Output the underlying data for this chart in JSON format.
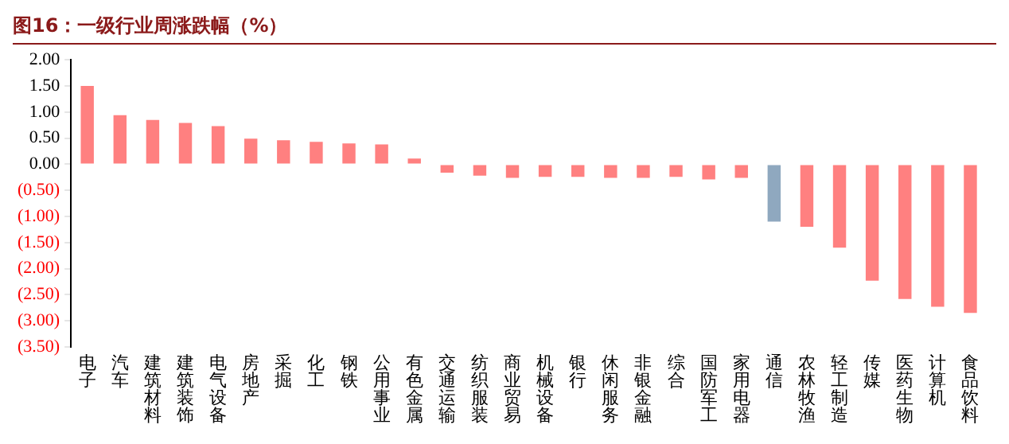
{
  "chart_data": {
    "type": "bar",
    "title": "图16：一级行业周涨跌幅（%）",
    "categories": [
      "电子",
      "汽车",
      "建筑材料",
      "建筑装饰",
      "电气设备",
      "房地产",
      "采掘",
      "化工",
      "钢铁",
      "公用事业",
      "有色金属",
      "交通运输",
      "纺织服装",
      "商业贸易",
      "机械设备",
      "银行",
      "休闲服务",
      "非银金融",
      "综合",
      "国防军工",
      "家用电器",
      "通信",
      "农林牧渔",
      "轻工制造",
      "传媒",
      "医药生物",
      "计算机",
      "食品饮料"
    ],
    "values": [
      1.5,
      0.94,
      0.85,
      0.79,
      0.73,
      0.49,
      0.46,
      0.43,
      0.4,
      0.38,
      0.11,
      -0.16,
      -0.22,
      -0.26,
      -0.24,
      -0.24,
      -0.26,
      -0.26,
      -0.24,
      -0.29,
      -0.26,
      -1.1,
      -1.2,
      -1.6,
      -2.23,
      -2.58,
      -2.73,
      -2.85
    ],
    "colors": [
      "#ff8080",
      "#ff8080",
      "#ff8080",
      "#ff8080",
      "#ff8080",
      "#ff8080",
      "#ff8080",
      "#ff8080",
      "#ff8080",
      "#ff8080",
      "#ff8080",
      "#ff8080",
      "#ff8080",
      "#ff8080",
      "#ff8080",
      "#ff8080",
      "#ff8080",
      "#ff8080",
      "#ff8080",
      "#ff8080",
      "#ff8080",
      "#8fa8bf",
      "#ff8080",
      "#ff8080",
      "#ff8080",
      "#ff8080",
      "#ff8080",
      "#ff8080"
    ],
    "ylim": [
      -3.5,
      2
    ],
    "yticks": [
      {
        "value": 2,
        "label": "2.00"
      },
      {
        "value": 1.5,
        "label": "1.50"
      },
      {
        "value": 1,
        "label": "1.00"
      },
      {
        "value": 0.5,
        "label": "0.50"
      },
      {
        "value": 0,
        "label": "0.00"
      },
      {
        "value": -0.5,
        "label": "(0.50)"
      },
      {
        "value": -1,
        "label": "(1.00)"
      },
      {
        "value": -1.5,
        "label": "(1.50)"
      },
      {
        "value": -2,
        "label": "(2.00)"
      },
      {
        "value": -2.5,
        "label": "(2.50)"
      },
      {
        "value": -3,
        "label": "(3.00)"
      },
      {
        "value": -3.5,
        "label": "(3.50)"
      }
    ],
    "grid": false,
    "legend": false
  }
}
